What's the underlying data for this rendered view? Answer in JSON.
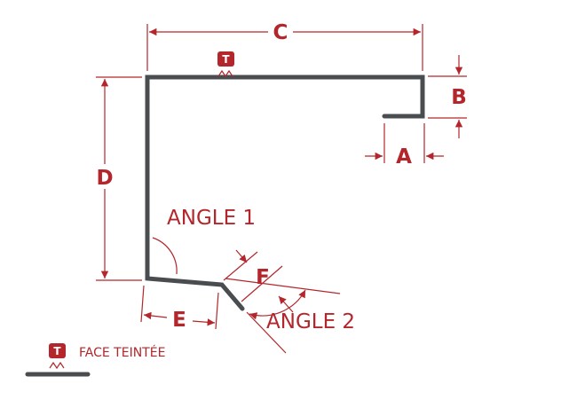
{
  "diagram": {
    "dimension_labels": {
      "a": "A",
      "b": "B",
      "c": "C",
      "d": "D",
      "e": "E",
      "f": "F"
    },
    "angle_labels": {
      "angle_1": "ANGLE 1",
      "angle_2": "ANGLE 2"
    },
    "badge_letter": "T",
    "legend": {
      "badge_letter": "T",
      "label": "FACE TEINTÉE"
    },
    "colors": {
      "accent": "#b3262b",
      "profile": "#4a4d4f",
      "background": "#ffffff"
    },
    "icons": [
      "painted-face-badge-icon"
    ]
  }
}
